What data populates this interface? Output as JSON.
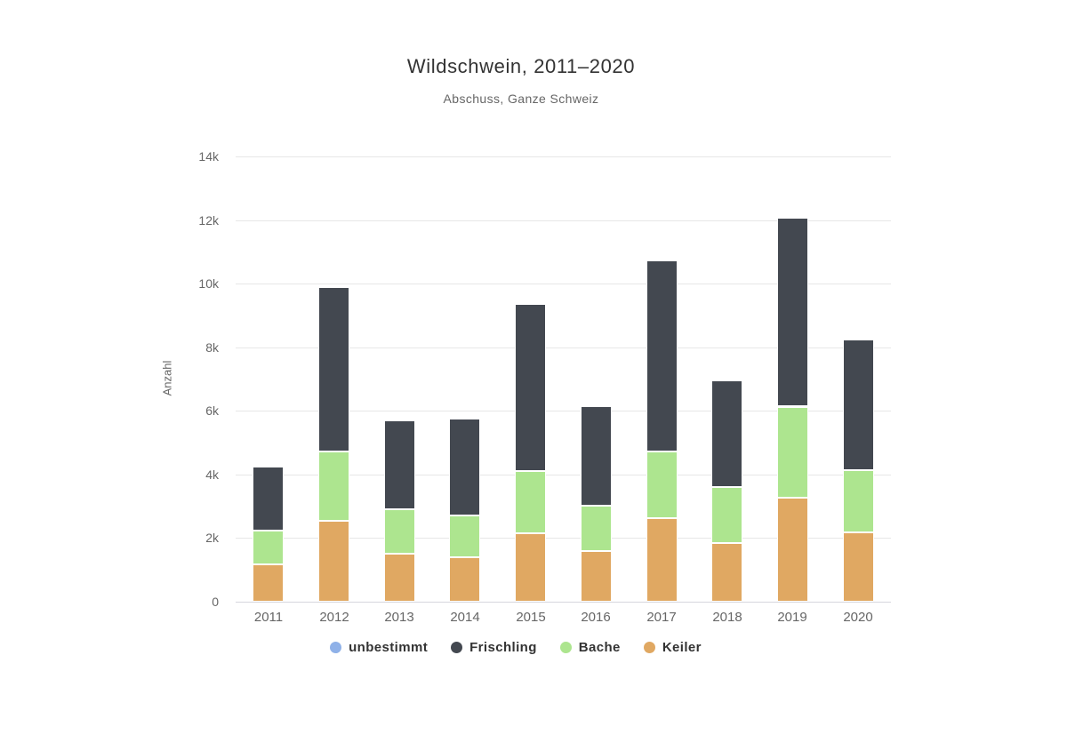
{
  "chart_data": {
    "type": "bar",
    "stacked": true,
    "title": "Wildschwein, 2011–2020",
    "subtitle": "Abschuss, Ganze Schweiz",
    "xlabel": "",
    "ylabel": "Anzahl",
    "ylim": [
      0,
      14000
    ],
    "grid": true,
    "legend_position": "bottom",
    "categories": [
      "2011",
      "2012",
      "2013",
      "2014",
      "2015",
      "2016",
      "2017",
      "2018",
      "2019",
      "2020"
    ],
    "series": [
      {
        "name": "unbestimmt",
        "color": "#8fb1e8",
        "values": [
          0,
          0,
          0,
          0,
          0,
          0,
          0,
          0,
          0,
          0
        ]
      },
      {
        "name": "Frischling",
        "color": "#434850",
        "values": [
          2010,
          5170,
          2800,
          3050,
          5250,
          3130,
          6010,
          3350,
          5930,
          4110
        ]
      },
      {
        "name": "Bache",
        "color": "#ade58f",
        "values": [
          1070,
          2180,
          1400,
          1310,
          1950,
          1430,
          2100,
          1750,
          2860,
          1960
        ]
      },
      {
        "name": "Keiler",
        "color": "#e0a862",
        "values": [
          1170,
          2550,
          1510,
          1400,
          2150,
          1590,
          2630,
          1850,
          3270,
          2180
        ]
      }
    ],
    "stack_order_bottom_to_top": [
      "Keiler",
      "Bache",
      "Frischling",
      "unbestimmt"
    ],
    "totals": [
      4250,
      9900,
      5710,
      5760,
      9350,
      6150,
      10740,
      6950,
      12060,
      8250
    ],
    "yticks": [
      {
        "value": 0,
        "label": "0"
      },
      {
        "value": 2000,
        "label": "2k"
      },
      {
        "value": 4000,
        "label": "4k"
      },
      {
        "value": 6000,
        "label": "6k"
      },
      {
        "value": 8000,
        "label": "8k"
      },
      {
        "value": 10000,
        "label": "10k"
      },
      {
        "value": 12000,
        "label": "12k"
      },
      {
        "value": 14000,
        "label": "14k"
      }
    ]
  },
  "colors": {
    "background": "#ffffff",
    "gridline": "#e7e7e7",
    "axis_line": "#d6d6dd",
    "title_text": "#333333",
    "muted_text": "#666666"
  }
}
